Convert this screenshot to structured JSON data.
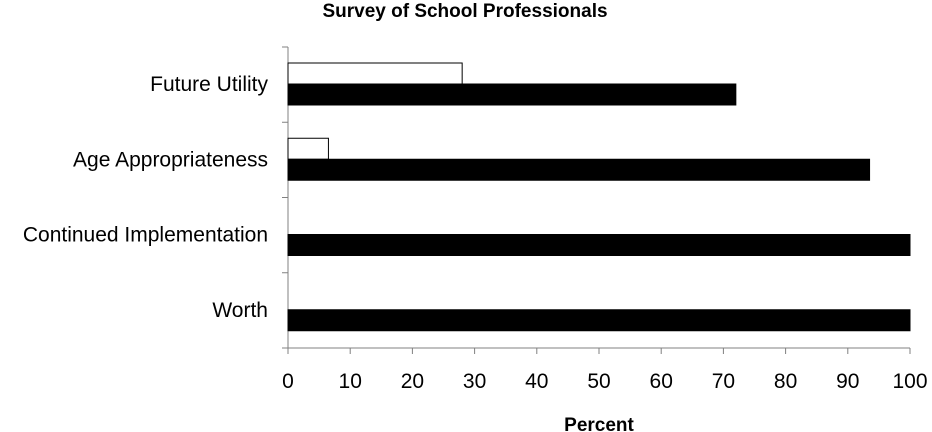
{
  "chart_data": {
    "type": "bar",
    "orientation": "horizontal",
    "title": "Survey of School Professionals",
    "xlabel": "Percent",
    "ylabel": "",
    "xlim": [
      0,
      100
    ],
    "xticks": [
      0,
      10,
      20,
      30,
      40,
      50,
      60,
      70,
      80,
      90,
      100
    ],
    "categories": [
      "Future Utility",
      "Age Appropriateness",
      "Continued Implementation",
      "Worth"
    ],
    "series": [
      {
        "values": [
          28,
          6.5,
          0,
          0
        ],
        "color": "#ffffff",
        "stroke": "#000000"
      },
      {
        "values": [
          72,
          93.5,
          100,
          100
        ],
        "color": "#000000",
        "stroke": "#000000"
      }
    ],
    "grid": false,
    "legend": false
  }
}
